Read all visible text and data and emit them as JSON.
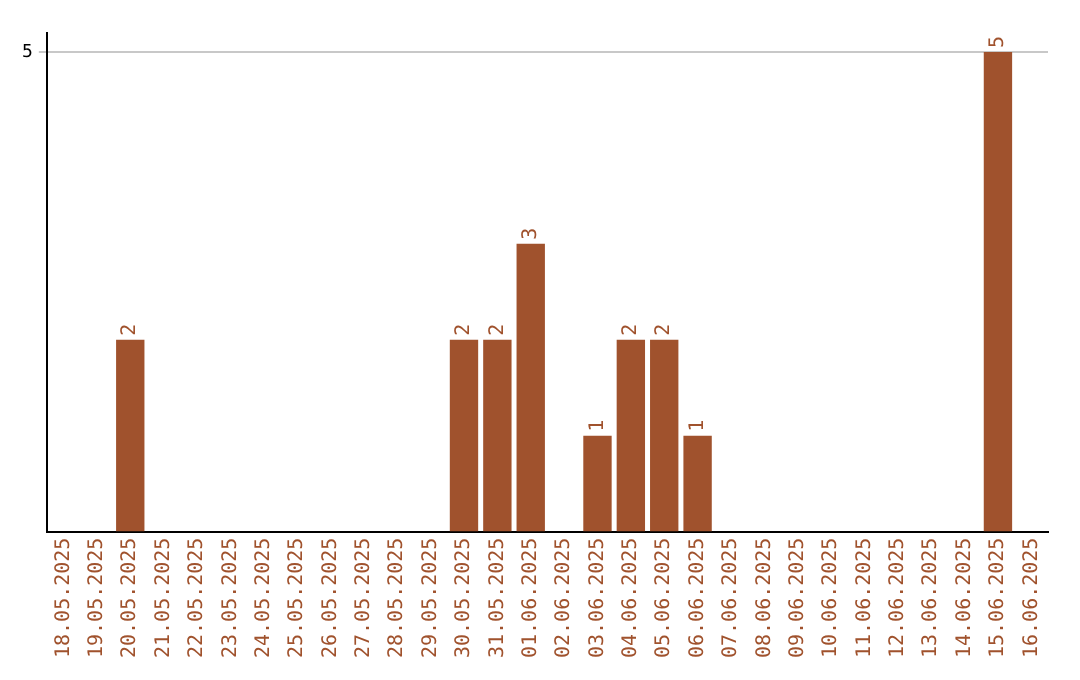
{
  "chart_data": {
    "type": "bar",
    "categories": [
      "18.05.2025",
      "19.05.2025",
      "20.05.2025",
      "21.05.2025",
      "22.05.2025",
      "23.05.2025",
      "24.05.2025",
      "25.05.2025",
      "26.05.2025",
      "27.05.2025",
      "28.05.2025",
      "29.05.2025",
      "30.05.2025",
      "31.05.2025",
      "01.06.2025",
      "02.06.2025",
      "03.06.2025",
      "04.06.2025",
      "05.06.2025",
      "06.06.2025",
      "07.06.2025",
      "08.06.2025",
      "09.06.2025",
      "10.06.2025",
      "11.06.2025",
      "12.06.2025",
      "13.06.2025",
      "14.06.2025",
      "15.06.2025",
      "16.06.2025"
    ],
    "values": [
      0,
      0,
      2,
      0,
      0,
      0,
      0,
      0,
      0,
      0,
      0,
      0,
      2,
      2,
      3,
      0,
      1,
      2,
      2,
      1,
      0,
      0,
      0,
      0,
      0,
      0,
      0,
      0,
      5,
      0
    ],
    "value_labels": [
      null,
      null,
      "2",
      null,
      null,
      null,
      null,
      null,
      null,
      null,
      null,
      null,
      "2",
      "2",
      "3",
      null,
      "1",
      "2",
      "2",
      "1",
      null,
      null,
      null,
      null,
      null,
      null,
      null,
      null,
      "5",
      null
    ],
    "color": "#a0522d",
    "ylim": [
      0,
      5.2
    ],
    "yticks": [
      5
    ],
    "grid": "y",
    "legend": false
  }
}
